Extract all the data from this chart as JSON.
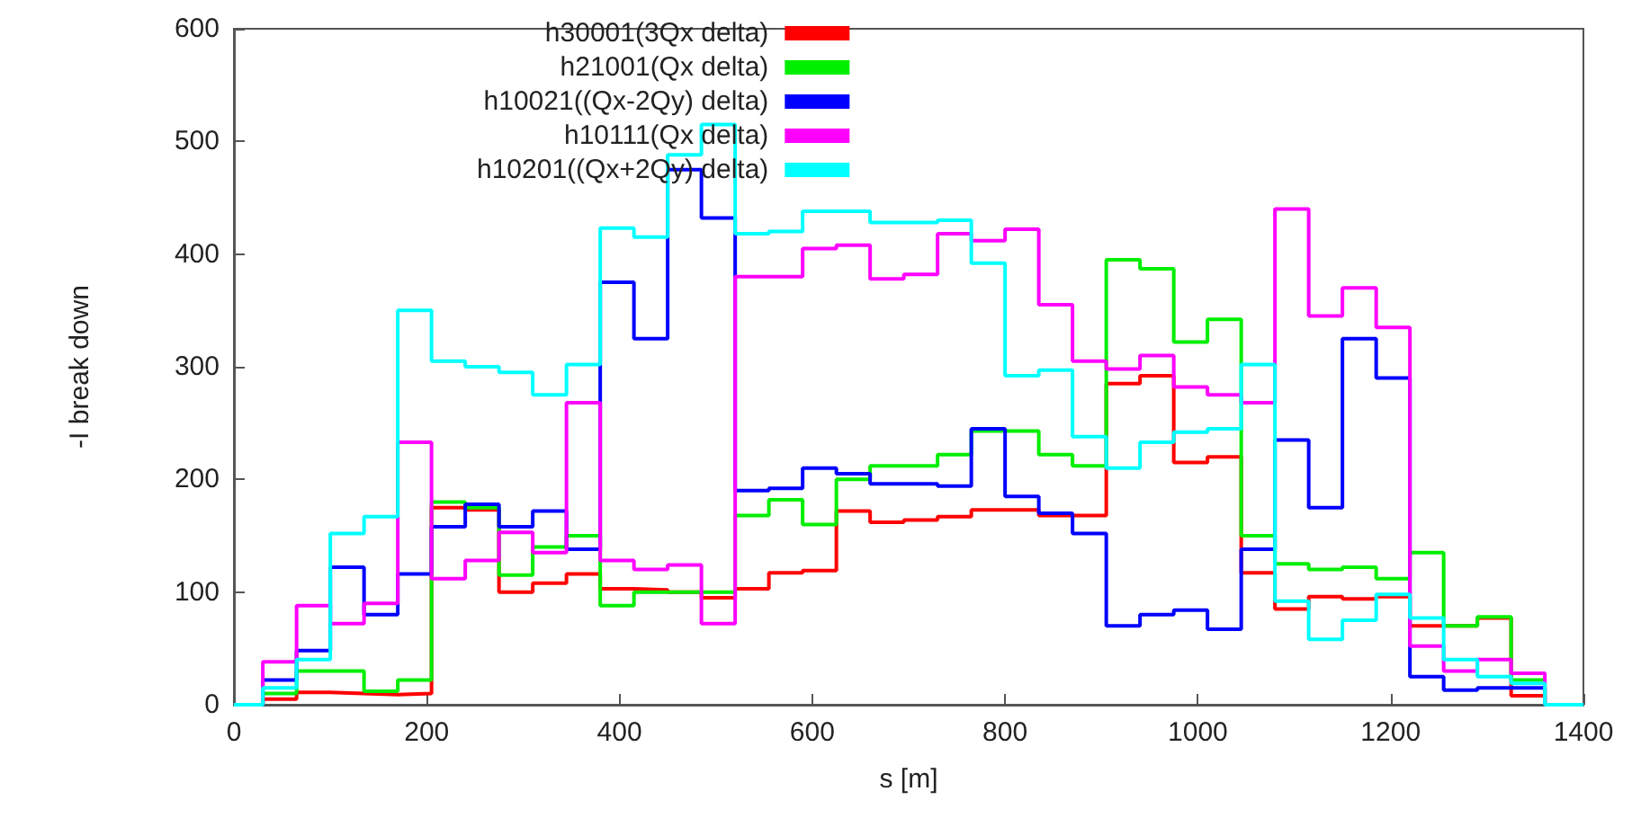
{
  "chart_data": {
    "type": "step",
    "xlabel": "s [m]",
    "ylabel": "-I break down",
    "x": [
      0,
      30,
      65,
      100,
      135,
      170,
      205,
      240,
      275,
      310,
      345,
      380,
      415,
      450,
      485,
      520,
      555,
      590,
      625,
      660,
      695,
      730,
      765,
      800,
      835,
      870,
      905,
      940,
      975,
      1010,
      1045,
      1080,
      1115,
      1150,
      1185,
      1220,
      1255,
      1290,
      1325,
      1360,
      1400
    ],
    "series": [
      {
        "name": "h30001(3Qx delta)",
        "color": "#ff0000",
        "values": [
          0,
          5,
          11,
          10,
          9,
          10,
          175,
          173,
          100,
          108,
          116,
          103,
          102,
          100,
          95,
          103,
          117,
          119,
          172,
          162,
          164,
          167,
          173,
          173,
          168,
          168,
          285,
          292,
          215,
          220,
          117,
          85,
          96,
          94,
          96,
          70,
          70,
          77,
          8,
          0,
          0
        ]
      },
      {
        "name": "h21001(Qx delta)",
        "color": "#00ee00",
        "values": [
          0,
          10,
          30,
          30,
          12,
          22,
          180,
          175,
          115,
          140,
          150,
          88,
          100,
          100,
          100,
          168,
          182,
          160,
          200,
          212,
          212,
          222,
          243,
          243,
          222,
          212,
          395,
          387,
          322,
          342,
          150,
          125,
          120,
          122,
          112,
          135,
          70,
          78,
          22,
          0,
          0
        ]
      },
      {
        "name": "h10021((Qx-2Qy) delta)",
        "color": "#0000ff",
        "values": [
          0,
          22,
          48,
          122,
          80,
          116,
          158,
          178,
          158,
          172,
          138,
          375,
          325,
          475,
          432,
          190,
          192,
          210,
          205,
          196,
          196,
          194,
          245,
          185,
          170,
          152,
          70,
          80,
          84,
          67,
          138,
          235,
          175,
          325,
          290,
          25,
          13,
          15,
          15,
          0,
          0
        ]
      },
      {
        "name": "h10111(Qx delta)",
        "color": "#ff00ff",
        "values": [
          0,
          38,
          88,
          72,
          90,
          233,
          112,
          128,
          153,
          135,
          268,
          128,
          120,
          124,
          72,
          380,
          380,
          405,
          408,
          378,
          382,
          418,
          412,
          422,
          355,
          305,
          298,
          310,
          282,
          275,
          268,
          440,
          345,
          370,
          335,
          52,
          30,
          40,
          28,
          0,
          0
        ]
      },
      {
        "name": "h10201((Qx+2Qy) delta)",
        "color": "#00ffff",
        "values": [
          0,
          15,
          40,
          152,
          167,
          350,
          305,
          300,
          295,
          275,
          302,
          423,
          415,
          488,
          515,
          418,
          420,
          438,
          438,
          428,
          428,
          430,
          392,
          292,
          297,
          238,
          210,
          233,
          242,
          245,
          302,
          92,
          58,
          75,
          98,
          77,
          40,
          25,
          19,
          0,
          0
        ]
      }
    ],
    "xlim": [
      0,
      1400
    ],
    "xticks": [
      0,
      200,
      400,
      600,
      800,
      1000,
      1200,
      1400
    ],
    "ylim": [
      0,
      600
    ],
    "yticks": [
      0,
      100,
      200,
      300,
      400,
      500,
      600
    ],
    "legend": "top",
    "grid": false
  }
}
